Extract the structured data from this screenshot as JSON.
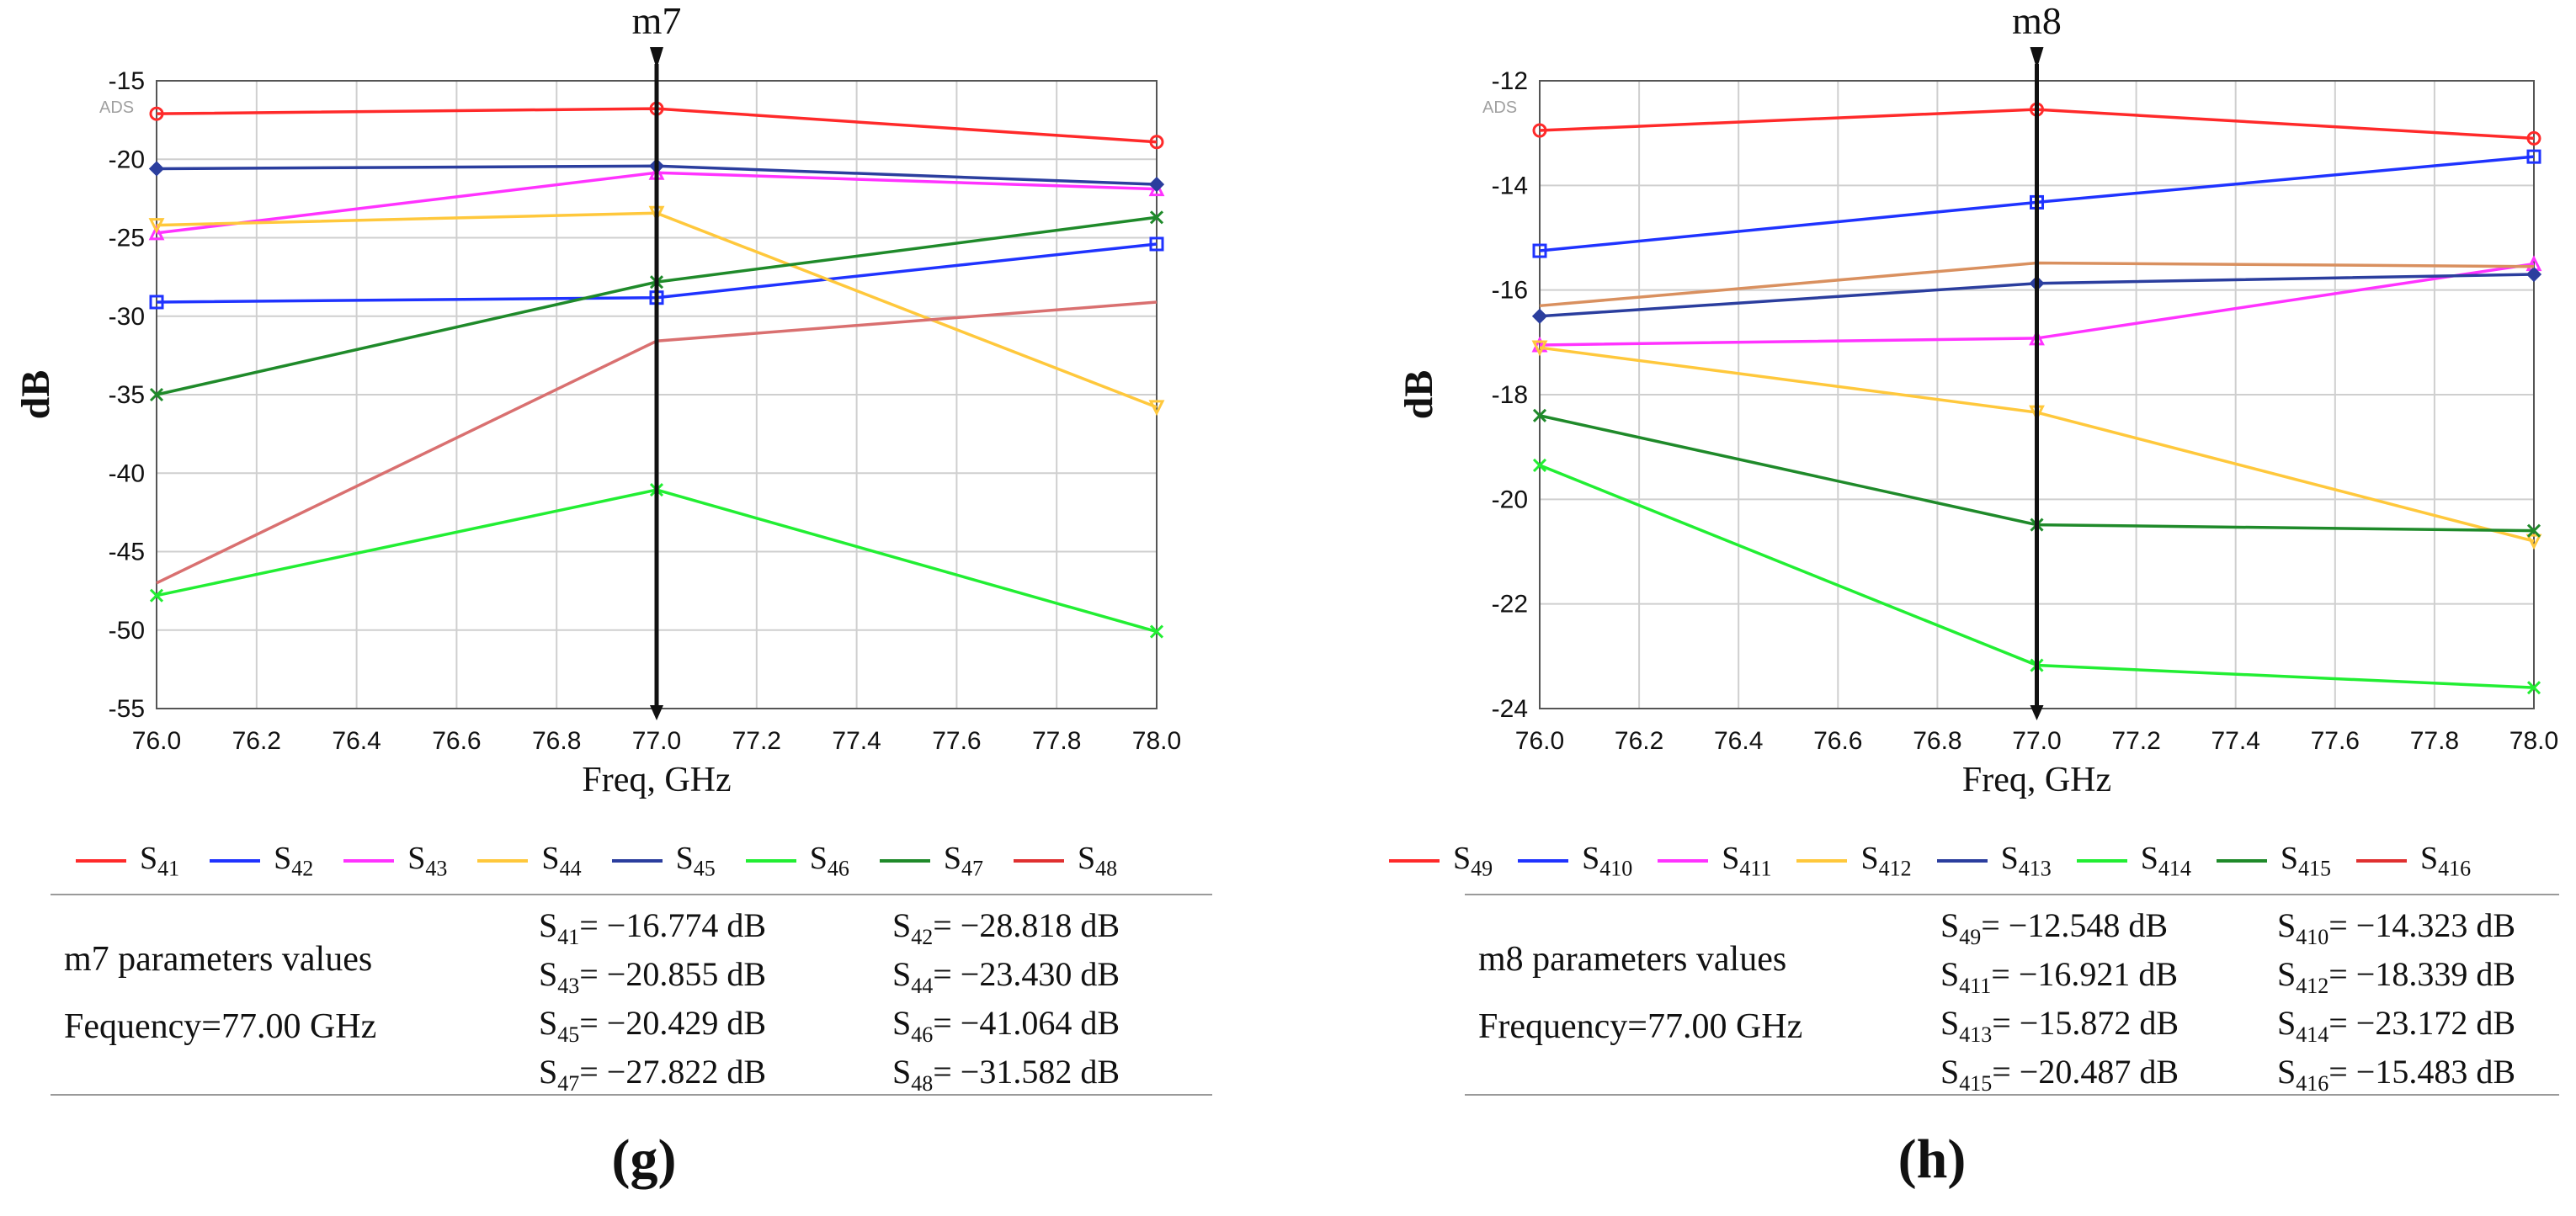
{
  "chart_data": [
    {
      "type": "line",
      "panel_label": "(g)",
      "watermark": "ADS",
      "marker": {
        "name": "m7",
        "x": 77.0
      },
      "xlabel": "Freq, GHz",
      "ylabel": "dB",
      "xlim": [
        76.0,
        78.0
      ],
      "ylim": [
        -55,
        -15
      ],
      "xticks": [
        76.0,
        76.2,
        76.4,
        76.6,
        76.8,
        77.0,
        77.2,
        77.4,
        77.6,
        77.8,
        78.0
      ],
      "xtick_labels": [
        "76.0",
        "76.2",
        "76.4",
        "76.6",
        "76.8",
        "77.0",
        "77.2",
        "77.4",
        "77.6",
        "77.8",
        "78.0"
      ],
      "yticks": [
        -55,
        -50,
        -45,
        -40,
        -35,
        -30,
        -25,
        -20,
        -15
      ],
      "ytick_labels": [
        "-55",
        "-50",
        "-45",
        "-40",
        "-35",
        "-30",
        "-25",
        "-20",
        "-15"
      ],
      "grid": true,
      "x": [
        76.0,
        77.0,
        78.0
      ],
      "series": [
        {
          "name": "S41",
          "base": "S",
          "sub": "41",
          "color": "#ff2a2a",
          "marker": "circle",
          "values": [
            -17.1,
            -16.774,
            -18.9
          ]
        },
        {
          "name": "S42",
          "base": "S",
          "sub": "42",
          "color": "#1f33ff",
          "marker": "square",
          "values": [
            -29.1,
            -28.818,
            -25.4
          ]
        },
        {
          "name": "S43",
          "base": "S",
          "sub": "43",
          "color": "#ff33ff",
          "marker": "triangle",
          "values": [
            -24.7,
            -20.855,
            -21.9
          ]
        },
        {
          "name": "S44",
          "base": "S",
          "sub": "44",
          "color": "#ffc83c",
          "marker": "triangle-down",
          "values": [
            -24.2,
            -23.43,
            -35.8
          ]
        },
        {
          "name": "S45",
          "base": "S",
          "sub": "45",
          "color": "#2b3e9e",
          "marker": "diamond",
          "values": [
            -20.6,
            -20.429,
            -21.6
          ]
        },
        {
          "name": "S46",
          "base": "S",
          "sub": "46",
          "color": "#22ee33",
          "marker": "x",
          "values": [
            -47.8,
            -41.064,
            -50.1
          ]
        },
        {
          "name": "S47",
          "base": "S",
          "sub": "47",
          "color": "#1f8a2a",
          "marker": "x",
          "values": [
            -35.0,
            -27.822,
            -23.7
          ]
        },
        {
          "name": "S48",
          "base": "S",
          "sub": "48",
          "color": "#d97070",
          "marker": "none",
          "values": [
            -47.0,
            -31.582,
            -29.1
          ]
        }
      ],
      "legend": [
        {
          "base": "S",
          "sub": "41",
          "color": "#ff2a2a"
        },
        {
          "base": "S",
          "sub": "42",
          "color": "#1f33ff"
        },
        {
          "base": "S",
          "sub": "43",
          "color": "#ff33ff"
        },
        {
          "base": "S",
          "sub": "44",
          "color": "#ffc83c"
        },
        {
          "base": "S",
          "sub": "45",
          "color": "#2b3e9e"
        },
        {
          "base": "S",
          "sub": "46",
          "color": "#22ee33"
        },
        {
          "base": "S",
          "sub": "47",
          "color": "#1f8a2a"
        },
        {
          "base": "S",
          "sub": "48",
          "color": "#e03030"
        }
      ],
      "params": {
        "title": "m7 parameters values",
        "frequency": "Fequency=77.00 GHz",
        "values": [
          {
            "base": "S",
            "sub": "41",
            "text": "= −16.774 dB"
          },
          {
            "base": "S",
            "sub": "42",
            "text": "= −28.818 dB"
          },
          {
            "base": "S",
            "sub": "43",
            "text": "= −20.855 dB"
          },
          {
            "base": "S",
            "sub": "44",
            "text": "= −23.430 dB"
          },
          {
            "base": "S",
            "sub": "45",
            "text": "= −20.429 dB"
          },
          {
            "base": "S",
            "sub": "46",
            "text": "= −41.064 dB"
          },
          {
            "base": "S",
            "sub": "47",
            "text": "= −27.822 dB"
          },
          {
            "base": "S",
            "sub": "48",
            "text": "= −31.582 dB"
          }
        ]
      }
    },
    {
      "type": "line",
      "panel_label": "(h)",
      "watermark": "ADS",
      "marker": {
        "name": "m8",
        "x": 77.0
      },
      "xlabel": "Freq, GHz",
      "ylabel": "dB",
      "xlim": [
        76.0,
        78.0
      ],
      "ylim": [
        -24,
        -12
      ],
      "xticks": [
        76.0,
        76.2,
        76.4,
        76.6,
        76.8,
        77.0,
        77.2,
        77.4,
        77.6,
        77.8,
        78.0
      ],
      "xtick_labels": [
        "76.0",
        "76.2",
        "76.4",
        "76.6",
        "76.8",
        "77.0",
        "77.2",
        "77.4",
        "77.6",
        "77.8",
        "78.0"
      ],
      "yticks": [
        -24,
        -22,
        -20,
        -18,
        -16,
        -14,
        -12
      ],
      "ytick_labels": [
        "-24",
        "-22",
        "-20",
        "-18",
        "-16",
        "-14",
        "-12"
      ],
      "grid": true,
      "x": [
        76.0,
        77.0,
        78.0
      ],
      "series": [
        {
          "name": "S49",
          "base": "S",
          "sub": "49",
          "color": "#ff2a2a",
          "marker": "circle",
          "values": [
            -12.95,
            -12.548,
            -13.1
          ]
        },
        {
          "name": "S410",
          "base": "S",
          "sub": "410",
          "color": "#1f33ff",
          "marker": "square",
          "values": [
            -15.25,
            -14.323,
            -13.45
          ]
        },
        {
          "name": "S411",
          "base": "S",
          "sub": "411",
          "color": "#ff33ff",
          "marker": "triangle",
          "values": [
            -17.05,
            -16.921,
            -15.5
          ]
        },
        {
          "name": "S412",
          "base": "S",
          "sub": "412",
          "color": "#ffc83c",
          "marker": "triangle-down",
          "values": [
            -17.1,
            -18.339,
            -20.8
          ]
        },
        {
          "name": "S413",
          "base": "S",
          "sub": "413",
          "color": "#2b3e9e",
          "marker": "diamond",
          "values": [
            -16.5,
            -15.872,
            -15.7
          ]
        },
        {
          "name": "S414",
          "base": "S",
          "sub": "414",
          "color": "#22ee33",
          "marker": "x",
          "values": [
            -19.35,
            -23.172,
            -23.6
          ]
        },
        {
          "name": "S415",
          "base": "S",
          "sub": "415",
          "color": "#1f8a2a",
          "marker": "x",
          "values": [
            -18.4,
            -20.487,
            -20.6
          ]
        },
        {
          "name": "S416",
          "base": "S",
          "sub": "416",
          "color": "#d9905f",
          "marker": "none",
          "values": [
            -16.3,
            -15.483,
            -15.55
          ]
        }
      ],
      "legend": [
        {
          "base": "S",
          "sub": "49",
          "color": "#ff2a2a"
        },
        {
          "base": "S",
          "sub": "410",
          "color": "#1f33ff"
        },
        {
          "base": "S",
          "sub": "411",
          "color": "#ff33ff"
        },
        {
          "base": "S",
          "sub": "412",
          "color": "#ffc83c"
        },
        {
          "base": "S",
          "sub": "413",
          "color": "#2b3e9e"
        },
        {
          "base": "S",
          "sub": "414",
          "color": "#22ee33"
        },
        {
          "base": "S",
          "sub": "415",
          "color": "#1f8a2a"
        },
        {
          "base": "S",
          "sub": "416",
          "color": "#e03030"
        }
      ],
      "params": {
        "title": "m8 parameters values",
        "frequency": "Frequency=77.00 GHz",
        "values": [
          {
            "base": "S",
            "sub": "49",
            "text": "=  −12.548 dB"
          },
          {
            "base": "S",
            "sub": "410",
            "text": "= −14.323 dB"
          },
          {
            "base": "S",
            "sub": "411",
            "text": "= −16.921 dB"
          },
          {
            "base": "S",
            "sub": "412",
            "text": "= −18.339 dB"
          },
          {
            "base": "S",
            "sub": "413",
            "text": "= −15.872 dB"
          },
          {
            "base": "S",
            "sub": "414",
            "text": "= −23.172 dB"
          },
          {
            "base": "S",
            "sub": "415",
            "text": "= −20.487 dB"
          },
          {
            "base": "S",
            "sub": "416",
            "text": "= −15.483 dB"
          }
        ]
      }
    }
  ]
}
